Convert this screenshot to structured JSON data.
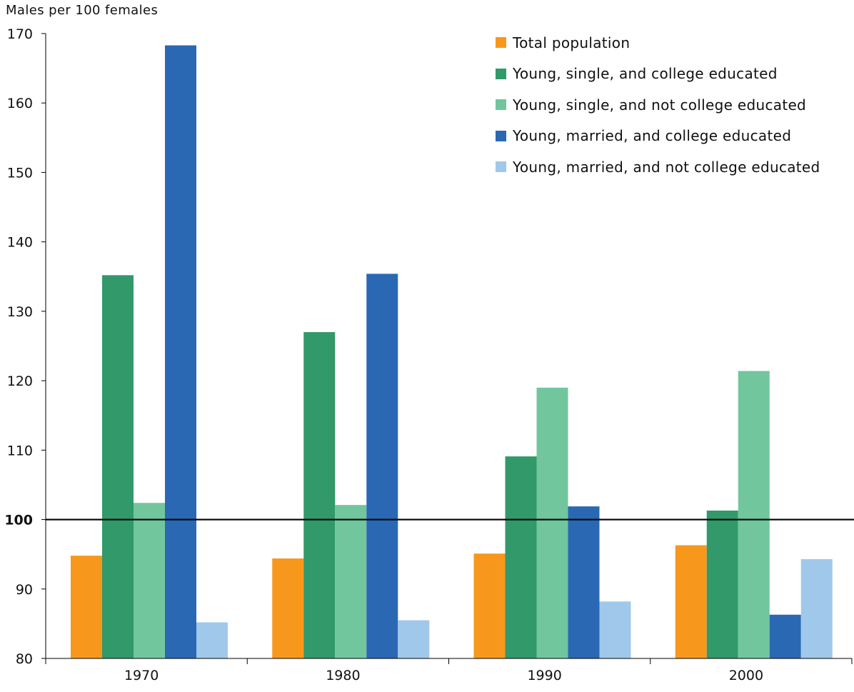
{
  "chart_data": {
    "type": "bar",
    "ylabel": "Males per 100 females",
    "xlabel": "",
    "title": "",
    "ylim": [
      80,
      170
    ],
    "yticks": [
      80,
      90,
      100,
      110,
      120,
      130,
      140,
      150,
      160,
      170
    ],
    "reference_line": {
      "value": 100,
      "label": "100"
    },
    "categories": [
      "1970",
      "1980",
      "1990",
      "2000"
    ],
    "legend_position": "top-right",
    "grid": false,
    "series": [
      {
        "name": "Total population",
        "color": "#f7981d",
        "values": [
          94.8,
          94.4,
          95.1,
          96.3
        ]
      },
      {
        "name": "Young, single, and college educated",
        "color": "#31996a",
        "values": [
          135.2,
          127.0,
          109.1,
          101.3
        ]
      },
      {
        "name": "Young, single, and not college educated",
        "color": "#71c69d",
        "values": [
          102.4,
          102.1,
          119.0,
          121.4
        ]
      },
      {
        "name": "Young, married, and college educated",
        "color": "#2a68b4",
        "values": [
          168.3,
          135.4,
          101.9,
          86.3
        ]
      },
      {
        "name": "Young, married, and not college educated",
        "color": "#a0c8ea",
        "values": [
          85.2,
          85.5,
          88.2,
          94.3
        ]
      }
    ]
  }
}
